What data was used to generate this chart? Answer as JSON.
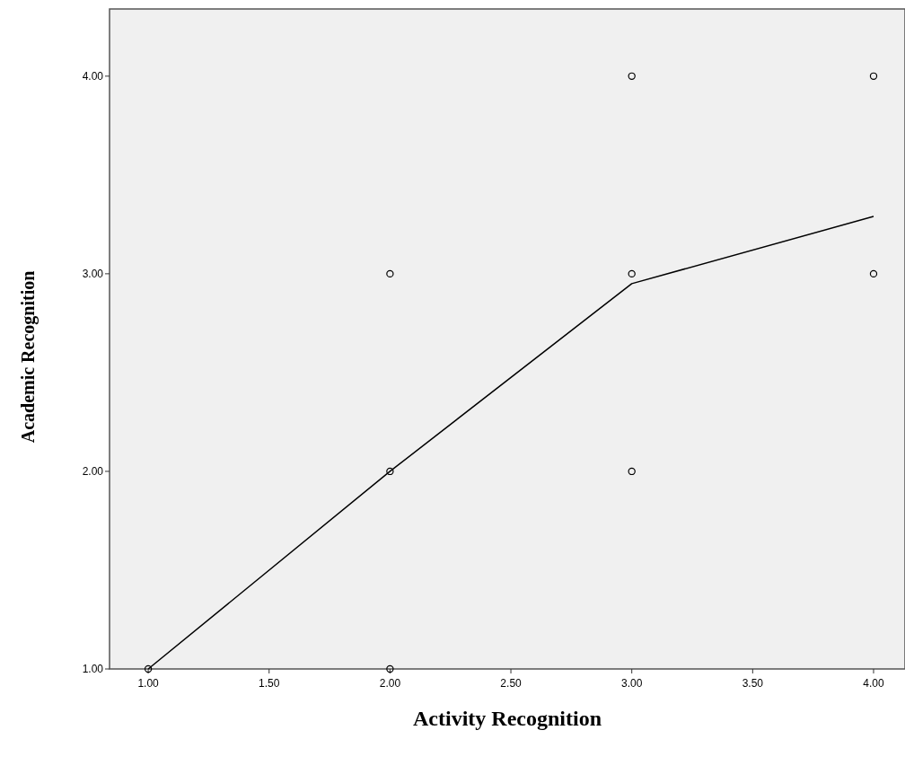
{
  "chart_data": {
    "type": "scatter",
    "xlabel": "Activity Recognition",
    "ylabel": "Academic Recognition",
    "xlim": [
      0.84,
      4.13
    ],
    "ylim": [
      1,
      4.34
    ],
    "xticks": [
      {
        "value": 1,
        "label": "1.00"
      },
      {
        "value": 1.5,
        "label": "1.50"
      },
      {
        "value": 2,
        "label": "2.00"
      },
      {
        "value": 2.5,
        "label": "2.50"
      },
      {
        "value": 3,
        "label": "3.00"
      },
      {
        "value": 3.5,
        "label": "3.50"
      },
      {
        "value": 4,
        "label": "4.00"
      }
    ],
    "yticks": [
      {
        "value": 1,
        "label": "1.00"
      },
      {
        "value": 2,
        "label": "2.00"
      },
      {
        "value": 3,
        "label": "3.00"
      },
      {
        "value": 4,
        "label": "4.00"
      }
    ],
    "grid": false,
    "marker": "circle",
    "series": [
      {
        "color": "#000000",
        "x": [
          1,
          2,
          2,
          2,
          3,
          3,
          3,
          4,
          4
        ],
        "values": [
          1,
          1,
          2,
          3,
          2,
          3,
          4,
          3,
          4
        ]
      },
      {
        "type": "line",
        "color": "#000000",
        "marker": "none",
        "x": [
          1,
          2,
          3,
          4
        ],
        "values": [
          1,
          2,
          2.95,
          3.29
        ]
      }
    ]
  }
}
